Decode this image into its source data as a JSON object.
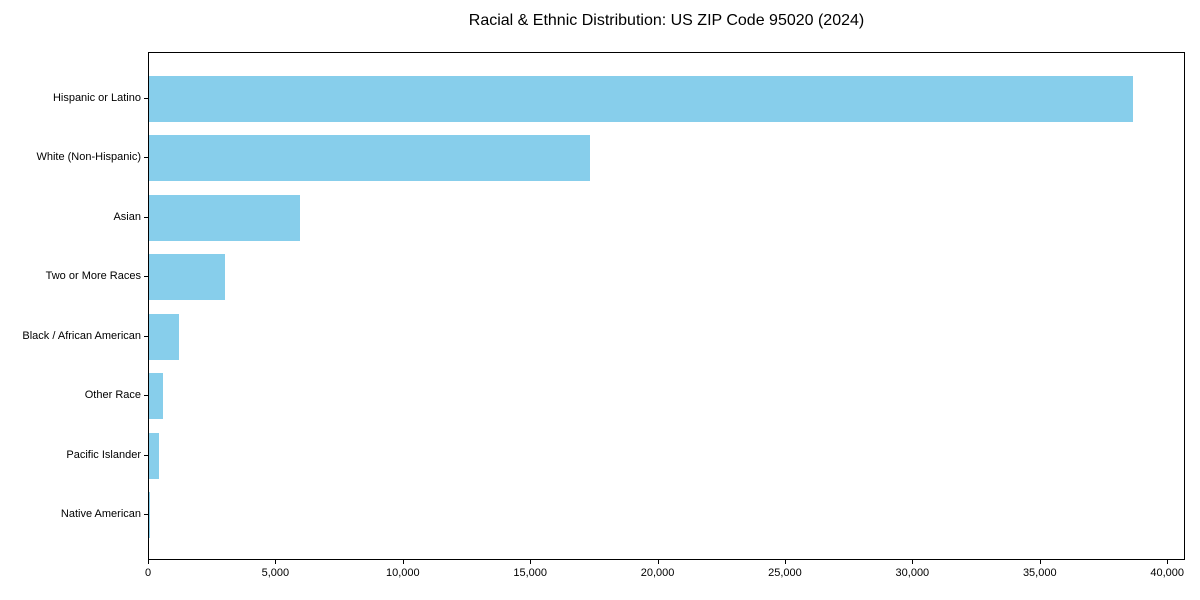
{
  "chart_data": {
    "type": "bar",
    "orientation": "horizontal",
    "title": "Racial & Ethnic Distribution: US ZIP Code 95020 (2024)",
    "categories": [
      "Hispanic or Latino",
      "White (Non-Hispanic)",
      "Asian",
      "Two or More Races",
      "Black / African American",
      "Other Race",
      "Pacific Islander",
      "Native American"
    ],
    "values": [
      38700,
      17350,
      5950,
      3000,
      1180,
      550,
      390,
      40
    ],
    "xlabel": "",
    "ylabel": "",
    "xlim": [
      0,
      40700
    ],
    "x_ticks": [
      0,
      5000,
      10000,
      15000,
      20000,
      25000,
      30000,
      35000,
      40000
    ],
    "x_tick_labels": [
      "0",
      "5,000",
      "10,000",
      "15,000",
      "20,000",
      "25,000",
      "30,000",
      "35,000",
      "40,000"
    ],
    "bar_color": "#87CEEB",
    "grid": false,
    "legend": null,
    "background_color": "#ffffff",
    "axis_color": "#000000"
  }
}
